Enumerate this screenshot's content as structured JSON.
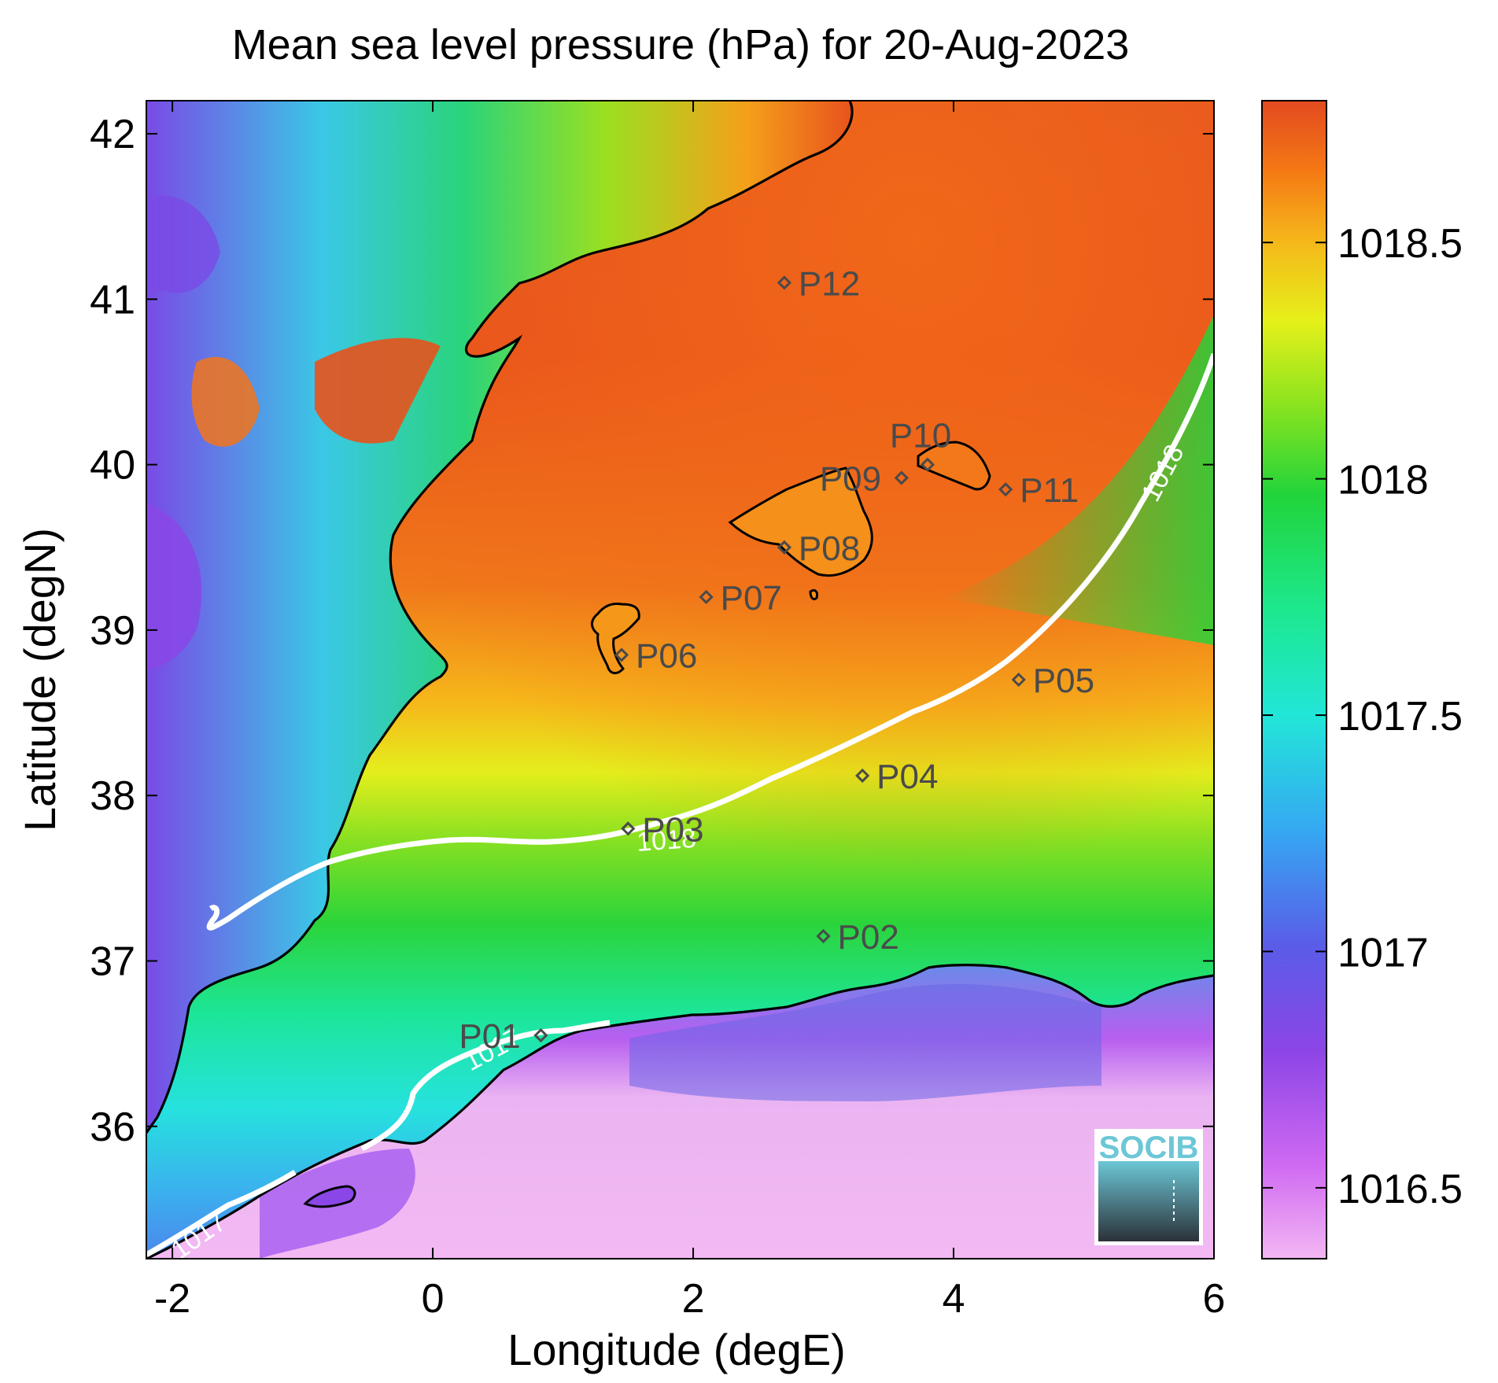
{
  "title": "Mean sea level pressure (hPa) for 20-Aug-2023",
  "x_axis": {
    "label": "Longitude (degE)",
    "ticks": [
      "-2",
      "0",
      "2",
      "4",
      "6"
    ],
    "range": [
      -2.2,
      6.0
    ]
  },
  "y_axis": {
    "label": "Latitude (degN)",
    "ticks": [
      "36",
      "37",
      "38",
      "39",
      "40",
      "41",
      "42"
    ],
    "range": [
      35.2,
      42.2
    ]
  },
  "colorbar": {
    "ticks": [
      "1016.5",
      "1017",
      "1017.5",
      "1018",
      "1018.5"
    ],
    "range": [
      1016.35,
      1018.8
    ],
    "colormap": [
      "#f3b7f3",
      "#c84cf0",
      "#7a4ae6",
      "#3b7ef0",
      "#2bd2f0",
      "#1ce8a8",
      "#22d43a",
      "#7ee020",
      "#e2f01a",
      "#f5c21a",
      "#f58a14",
      "#e8521c"
    ]
  },
  "contour_labels": [
    "1018",
    "1018",
    "1017",
    "1017"
  ],
  "stations": [
    {
      "name": "P01",
      "lon": 0.83,
      "lat": 36.55
    },
    {
      "name": "P02",
      "lon": 3.0,
      "lat": 37.15
    },
    {
      "name": "P03",
      "lon": 1.5,
      "lat": 37.8
    },
    {
      "name": "P04",
      "lon": 3.3,
      "lat": 38.12
    },
    {
      "name": "P05",
      "lon": 4.5,
      "lat": 38.7
    },
    {
      "name": "P06",
      "lon": 1.45,
      "lat": 38.85
    },
    {
      "name": "P07",
      "lon": 2.1,
      "lat": 39.2
    },
    {
      "name": "P08",
      "lon": 2.7,
      "lat": 39.5
    },
    {
      "name": "P09",
      "lon": 3.6,
      "lat": 39.92
    },
    {
      "name": "P10",
      "lon": 3.8,
      "lat": 40.0
    },
    {
      "name": "P11",
      "lon": 4.4,
      "lat": 39.85
    },
    {
      "name": "P12",
      "lon": 2.7,
      "lat": 41.1
    }
  ],
  "logo": {
    "text": "SOCIB",
    "color": "#6cc7d6"
  }
}
